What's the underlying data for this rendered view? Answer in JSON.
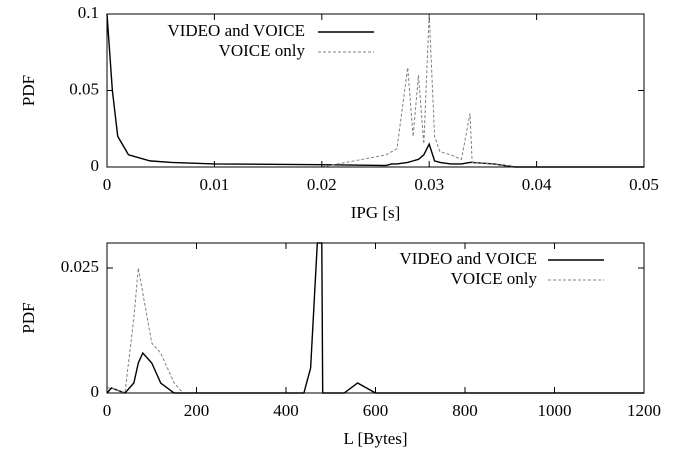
{
  "chart_data": [
    {
      "type": "line",
      "xlabel": "IPG [s]",
      "ylabel": "PDF",
      "x": [
        0,
        0.0005,
        0.001,
        0.002,
        0.004,
        0.006,
        0.01,
        0.02,
        0.026,
        0.0265,
        0.027,
        0.028,
        0.0285,
        0.029,
        0.0295,
        0.03,
        0.0305,
        0.031,
        0.032,
        0.033,
        0.0338,
        0.034,
        0.036,
        0.038,
        0.05
      ],
      "series": [
        {
          "name": "VIDEO and VOICE",
          "color": "#000000",
          "line_style": "solid",
          "values": [
            0.1,
            0.05,
            0.02,
            0.008,
            0.004,
            0.003,
            0.002,
            0.0015,
            0.001,
            0.002,
            0.002,
            0.003,
            0.004,
            0.005,
            0.008,
            0.015,
            0.004,
            0.003,
            0.002,
            0.002,
            0.003,
            0.003,
            0.002,
            0,
            0
          ]
        },
        {
          "name": "VOICE only",
          "color": "#808080",
          "line_style": "dashed",
          "values": [
            0,
            0,
            0,
            0,
            0,
            0,
            0,
            0,
            0.008,
            0.01,
            0.012,
            0.065,
            0.02,
            0.06,
            0.015,
            0.1,
            0.02,
            0.01,
            0.008,
            0.005,
            0.035,
            0.003,
            0.002,
            0,
            0
          ]
        }
      ],
      "xlim": [
        0,
        0.05
      ],
      "xticks": [
        0,
        0.01,
        0.02,
        0.03,
        0.04,
        0.05
      ],
      "ylim": [
        0,
        0.1
      ],
      "yticks": [
        0,
        0.05,
        0.1
      ],
      "legend": "top-right"
    },
    {
      "type": "line",
      "xlabel": "L [Bytes]",
      "ylabel": "PDF",
      "x": [
        0,
        10,
        40,
        60,
        70,
        80,
        100,
        120,
        150,
        170,
        440,
        455,
        470,
        480,
        482,
        530,
        560,
        600,
        1200
      ],
      "series": [
        {
          "name": "VIDEO and VOICE",
          "color": "#000000",
          "line_style": "solid",
          "values": [
            0,
            0.001,
            0,
            0.002,
            0.006,
            0.008,
            0.006,
            0.002,
            0,
            0,
            0,
            0.005,
            0.03,
            0.03,
            0,
            0,
            0.002,
            0,
            0
          ]
        },
        {
          "name": "VOICE only",
          "color": "#808080",
          "line_style": "dashed",
          "values": [
            0.001,
            0.001,
            0,
            0.015,
            0.025,
            0.02,
            0.01,
            0.008,
            0.002,
            0,
            0,
            0,
            0,
            0,
            0,
            0,
            0,
            0,
            0
          ]
        }
      ],
      "xlim": [
        0,
        1200
      ],
      "xticks": [
        0,
        200,
        400,
        600,
        800,
        1000,
        1200
      ],
      "ylim": [
        0,
        0.03
      ],
      "yticks": [
        0,
        0.025
      ],
      "legend": "top-right"
    }
  ]
}
